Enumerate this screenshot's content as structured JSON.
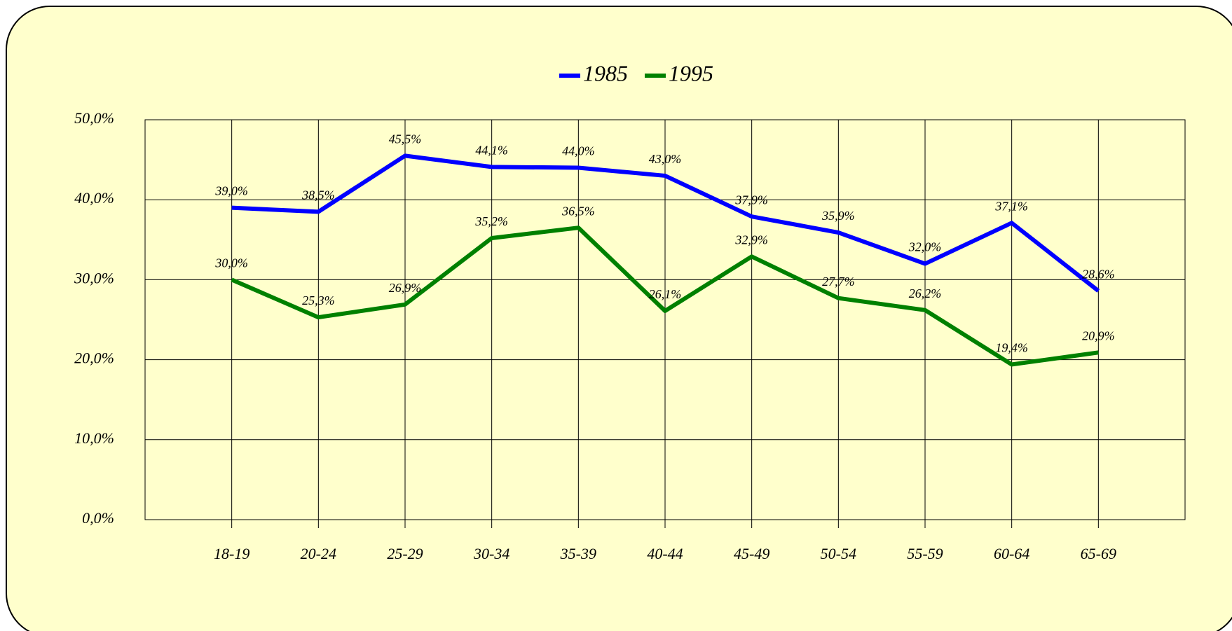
{
  "chart_data": {
    "type": "line",
    "categories": [
      "18-19",
      "20-24",
      "25-29",
      "30-34",
      "35-39",
      "40-44",
      "45-49",
      "50-54",
      "55-59",
      "60-64",
      "65-69"
    ],
    "series": [
      {
        "name": "1985",
        "color": "#0000ff",
        "values": [
          39.0,
          38.5,
          45.5,
          44.1,
          44.0,
          43.0,
          37.9,
          35.9,
          32.0,
          37.1,
          28.6
        ],
        "value_labels": [
          "39,0%",
          "38,5%",
          "45,5%",
          "44,1%",
          "44,0%",
          "43,0%",
          "37,9%",
          "35,9%",
          "32,0%",
          "37,1%",
          "28,6%"
        ]
      },
      {
        "name": "1995",
        "color": "#008000",
        "values": [
          30.0,
          25.3,
          26.9,
          35.2,
          36.5,
          26.1,
          32.9,
          27.7,
          26.2,
          19.4,
          20.9
        ],
        "value_labels": [
          "30,0%",
          "25,3%",
          "26,9%",
          "35,2%",
          "36,5%",
          "26,1%",
          "32,9%",
          "27,7%",
          "26,2%",
          "19,4%",
          "20,9%"
        ]
      }
    ],
    "ylim": [
      0,
      50
    ],
    "yticks": [
      {
        "value": 0,
        "label": "0,0%"
      },
      {
        "value": 10,
        "label": "10,0%"
      },
      {
        "value": 20,
        "label": "20,0%"
      },
      {
        "value": 30,
        "label": "30,0%"
      },
      {
        "value": 40,
        "label": "40,0%"
      },
      {
        "value": 50,
        "label": "50,0%"
      }
    ],
    "grid": true,
    "legend": "top"
  }
}
